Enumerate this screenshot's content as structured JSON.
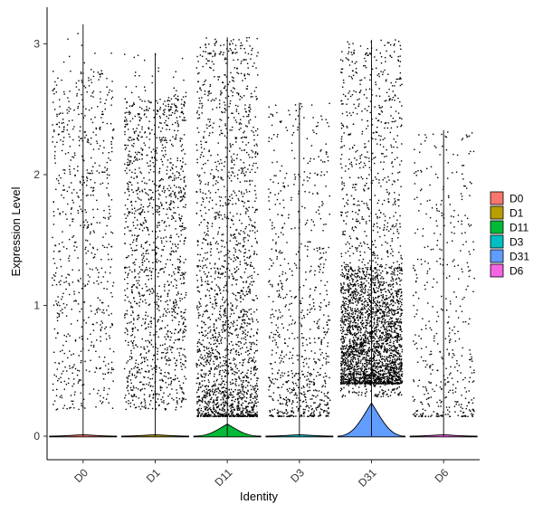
{
  "chart_data": {
    "type": "violin-jitter",
    "xlabel": "Identity",
    "ylabel": "Expression Level",
    "ylim": [
      -0.18,
      3.28
    ],
    "yticks": [
      0,
      1,
      2,
      3
    ],
    "grid": false,
    "legend_position": "right",
    "categories": [
      "D0",
      "D1",
      "D11",
      "D3",
      "D31",
      "D6"
    ],
    "series": [
      {
        "name": "D0",
        "color": "#F8766D",
        "max": 3.15,
        "n_points": 700,
        "spread": "uniform",
        "zero_density": 0.005
      },
      {
        "name": "D1",
        "color": "#B79F00",
        "max": 2.93,
        "n_points": 1400,
        "spread": "uniform",
        "zero_density": 0.005
      },
      {
        "name": "D11",
        "color": "#00BA38",
        "max": 3.05,
        "n_points": 2000,
        "spread": "low-heavy",
        "zero_density": 0.04
      },
      {
        "name": "D3",
        "color": "#00BFC4",
        "max": 2.55,
        "n_points": 800,
        "spread": "low-heavy",
        "zero_density": 0.005
      },
      {
        "name": "D31",
        "color": "#619CFF",
        "max": 3.03,
        "n_points": 3200,
        "spread": "mid-heavy",
        "zero_density": 0.11
      },
      {
        "name": "D6",
        "color": "#F564E3",
        "max": 2.34,
        "n_points": 450,
        "spread": "low-heavy",
        "zero_density": 0.005
      }
    ]
  }
}
